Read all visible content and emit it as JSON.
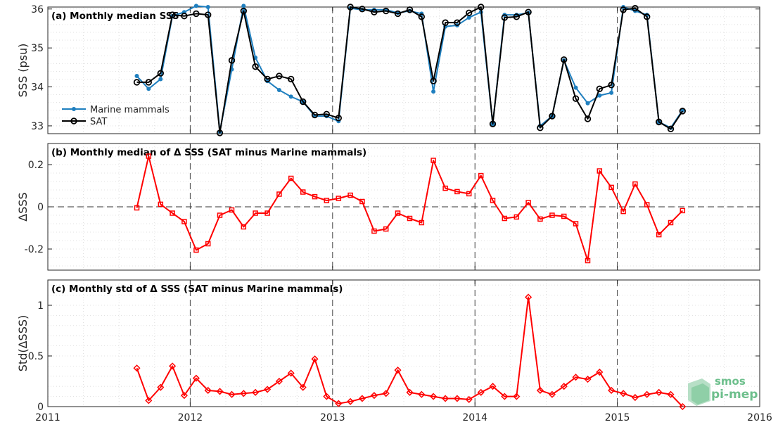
{
  "colors": {
    "marine": "#1f7fbf",
    "sat": "#000000",
    "delta": "#ff0000",
    "grid": "#d9d9d9",
    "year_line": "#444444",
    "logo": "#6dbf8c"
  },
  "logo": {
    "line1": "smos",
    "line2": "pi-mep"
  },
  "chart_data": [
    {
      "type": "line",
      "title": "(a) Monthly median SSS",
      "ylabel": "SSS (psu)",
      "xlim": [
        2011,
        2016
      ],
      "ylim": [
        32.8,
        36.05
      ],
      "yticks": [
        33,
        34,
        35,
        36
      ],
      "xticks": [
        2011,
        2012,
        2013,
        2014,
        2015,
        2016
      ],
      "legend": {
        "position": "left-middle"
      },
      "series": [
        {
          "name": "Marine mammals",
          "marker": "dot",
          "points": [
            [
              2011.625,
              34.28
            ],
            [
              2011.708,
              33.95
            ],
            [
              2011.792,
              34.2
            ],
            [
              2011.875,
              35.82
            ],
            [
              2011.958,
              35.92
            ],
            [
              2012.042,
              36.08
            ],
            [
              2012.125,
              36.05
            ],
            [
              2012.208,
              32.85
            ],
            [
              2012.292,
              34.45
            ],
            [
              2012.375,
              36.08
            ],
            [
              2012.458,
              34.75
            ],
            [
              2012.542,
              34.15
            ],
            [
              2012.625,
              33.92
            ],
            [
              2012.708,
              33.75
            ],
            [
              2012.792,
              33.62
            ],
            [
              2012.875,
              33.25
            ],
            [
              2012.958,
              33.25
            ],
            [
              2013.042,
              33.12
            ],
            [
              2013.125,
              36.02
            ],
            [
              2013.208,
              35.98
            ],
            [
              2013.292,
              35.98
            ],
            [
              2013.375,
              35.98
            ],
            [
              2013.458,
              35.9
            ],
            [
              2013.542,
              35.95
            ],
            [
              2013.625,
              35.88
            ],
            [
              2013.708,
              33.88
            ],
            [
              2013.792,
              35.55
            ],
            [
              2013.875,
              35.58
            ],
            [
              2013.958,
              35.78
            ],
            [
              2014.042,
              35.92
            ],
            [
              2014.125,
              33.05
            ],
            [
              2014.208,
              35.85
            ],
            [
              2014.292,
              35.85
            ],
            [
              2014.375,
              35.9
            ],
            [
              2014.458,
              33.0
            ],
            [
              2014.542,
              33.25
            ],
            [
              2014.625,
              34.68
            ],
            [
              2014.708,
              33.98
            ],
            [
              2014.792,
              33.58
            ],
            [
              2014.875,
              33.78
            ],
            [
              2014.958,
              33.85
            ],
            [
              2015.042,
              36.05
            ],
            [
              2015.125,
              35.95
            ],
            [
              2015.208,
              35.85
            ],
            [
              2015.292,
              33.1
            ],
            [
              2015.375,
              32.95
            ],
            [
              2015.458,
              33.4
            ]
          ]
        },
        {
          "name": "SAT",
          "marker": "circle",
          "points": [
            [
              2011.625,
              34.12
            ],
            [
              2011.708,
              34.12
            ],
            [
              2011.792,
              34.35
            ],
            [
              2011.875,
              35.85
            ],
            [
              2011.958,
              35.82
            ],
            [
              2012.042,
              35.88
            ],
            [
              2012.125,
              35.85
            ],
            [
              2012.208,
              32.82
            ],
            [
              2012.292,
              34.68
            ],
            [
              2012.375,
              35.95
            ],
            [
              2012.458,
              34.52
            ],
            [
              2012.542,
              34.2
            ],
            [
              2012.625,
              34.28
            ],
            [
              2012.708,
              34.2
            ],
            [
              2012.792,
              33.62
            ],
            [
              2012.875,
              33.28
            ],
            [
              2012.958,
              33.3
            ],
            [
              2013.042,
              33.2
            ],
            [
              2013.125,
              36.05
            ],
            [
              2013.208,
              36.0
            ],
            [
              2013.292,
              35.92
            ],
            [
              2013.375,
              35.95
            ],
            [
              2013.458,
              35.88
            ],
            [
              2013.542,
              35.98
            ],
            [
              2013.625,
              35.8
            ],
            [
              2013.708,
              34.15
            ],
            [
              2013.792,
              35.65
            ],
            [
              2013.875,
              35.65
            ],
            [
              2013.958,
              35.9
            ],
            [
              2014.042,
              36.05
            ],
            [
              2014.125,
              33.05
            ],
            [
              2014.208,
              35.78
            ],
            [
              2014.292,
              35.8
            ],
            [
              2014.375,
              35.92
            ],
            [
              2014.458,
              32.95
            ],
            [
              2014.542,
              33.25
            ],
            [
              2014.625,
              34.7
            ],
            [
              2014.708,
              33.7
            ],
            [
              2014.792,
              33.18
            ],
            [
              2014.875,
              33.95
            ],
            [
              2014.958,
              34.05
            ],
            [
              2015.042,
              35.98
            ],
            [
              2015.125,
              36.02
            ],
            [
              2015.208,
              35.8
            ],
            [
              2015.292,
              33.1
            ],
            [
              2015.375,
              32.92
            ],
            [
              2015.458,
              33.38
            ]
          ]
        }
      ]
    },
    {
      "type": "line",
      "title": "(b) Monthly median of Δ SSS (SAT minus Marine mammals)",
      "ylabel": "ΔSSS",
      "xlim": [
        2011,
        2016
      ],
      "ylim": [
        -0.3,
        0.3
      ],
      "yticks": [
        -0.2,
        0,
        0.2
      ],
      "ytick_labels": [
        "-0.2",
        "0",
        "0.2"
      ],
      "xticks": [
        2011,
        2012,
        2013,
        2014,
        2015,
        2016
      ],
      "series": [
        {
          "marker": "square",
          "points": [
            [
              2011.625,
              -0.005
            ],
            [
              2011.708,
              0.24
            ],
            [
              2011.792,
              0.012
            ],
            [
              2011.875,
              -0.03
            ],
            [
              2011.958,
              -0.07
            ],
            [
              2012.042,
              -0.205
            ],
            [
              2012.125,
              -0.175
            ],
            [
              2012.208,
              -0.04
            ],
            [
              2012.292,
              -0.015
            ],
            [
              2012.375,
              -0.095
            ],
            [
              2012.458,
              -0.03
            ],
            [
              2012.542,
              -0.03
            ],
            [
              2012.625,
              0.06
            ],
            [
              2012.708,
              0.135
            ],
            [
              2012.792,
              0.07
            ],
            [
              2012.875,
              0.048
            ],
            [
              2012.958,
              0.03
            ],
            [
              2013.042,
              0.04
            ],
            [
              2013.125,
              0.055
            ],
            [
              2013.208,
              0.025
            ],
            [
              2013.292,
              -0.115
            ],
            [
              2013.375,
              -0.105
            ],
            [
              2013.458,
              -0.03
            ],
            [
              2013.542,
              -0.055
            ],
            [
              2013.625,
              -0.075
            ],
            [
              2013.708,
              0.22
            ],
            [
              2013.792,
              0.088
            ],
            [
              2013.875,
              0.072
            ],
            [
              2013.958,
              0.062
            ],
            [
              2014.042,
              0.148
            ],
            [
              2014.125,
              0.03
            ],
            [
              2014.208,
              -0.055
            ],
            [
              2014.292,
              -0.048
            ],
            [
              2014.375,
              0.02
            ],
            [
              2014.458,
              -0.058
            ],
            [
              2014.542,
              -0.04
            ],
            [
              2014.625,
              -0.045
            ],
            [
              2014.708,
              -0.08
            ],
            [
              2014.792,
              -0.255
            ],
            [
              2014.875,
              0.17
            ],
            [
              2014.958,
              0.092
            ],
            [
              2015.042,
              -0.022
            ],
            [
              2015.125,
              0.108
            ],
            [
              2015.208,
              0.01
            ],
            [
              2015.292,
              -0.132
            ],
            [
              2015.375,
              -0.075
            ],
            [
              2015.458,
              -0.018
            ]
          ]
        }
      ]
    },
    {
      "type": "line",
      "title": "(c) Monthly std of Δ SSS (SAT minus Marine mammals)",
      "ylabel": "Std(ΔSSS)",
      "xlim": [
        2011,
        2016
      ],
      "ylim": [
        0,
        1.25
      ],
      "yticks": [
        0,
        0.5,
        1
      ],
      "ytick_labels": [
        "0",
        "0.5",
        "1"
      ],
      "xticks": [
        2011,
        2012,
        2013,
        2014,
        2015,
        2016
      ],
      "series": [
        {
          "marker": "diamond",
          "points": [
            [
              2011.625,
              0.38
            ],
            [
              2011.708,
              0.06
            ],
            [
              2011.792,
              0.19
            ],
            [
              2011.875,
              0.4
            ],
            [
              2011.958,
              0.11
            ],
            [
              2012.042,
              0.28
            ],
            [
              2012.125,
              0.16
            ],
            [
              2012.208,
              0.15
            ],
            [
              2012.292,
              0.12
            ],
            [
              2012.375,
              0.13
            ],
            [
              2012.458,
              0.14
            ],
            [
              2012.542,
              0.17
            ],
            [
              2012.625,
              0.25
            ],
            [
              2012.708,
              0.33
            ],
            [
              2012.792,
              0.19
            ],
            [
              2012.875,
              0.47
            ],
            [
              2012.958,
              0.1
            ],
            [
              2013.042,
              0.03
            ],
            [
              2013.125,
              0.05
            ],
            [
              2013.208,
              0.08
            ],
            [
              2013.292,
              0.11
            ],
            [
              2013.375,
              0.13
            ],
            [
              2013.458,
              0.36
            ],
            [
              2013.542,
              0.14
            ],
            [
              2013.625,
              0.12
            ],
            [
              2013.708,
              0.1
            ],
            [
              2013.792,
              0.08
            ],
            [
              2013.875,
              0.08
            ],
            [
              2013.958,
              0.07
            ],
            [
              2014.042,
              0.14
            ],
            [
              2014.125,
              0.2
            ],
            [
              2014.208,
              0.1
            ],
            [
              2014.292,
              0.1
            ],
            [
              2014.375,
              1.08
            ],
            [
              2014.458,
              0.16
            ],
            [
              2014.542,
              0.12
            ],
            [
              2014.625,
              0.2
            ],
            [
              2014.708,
              0.29
            ],
            [
              2014.792,
              0.27
            ],
            [
              2014.875,
              0.34
            ],
            [
              2014.958,
              0.16
            ],
            [
              2015.042,
              0.13
            ],
            [
              2015.125,
              0.09
            ],
            [
              2015.208,
              0.12
            ],
            [
              2015.292,
              0.14
            ],
            [
              2015.375,
              0.12
            ],
            [
              2015.458,
              0.0
            ]
          ]
        }
      ]
    }
  ]
}
